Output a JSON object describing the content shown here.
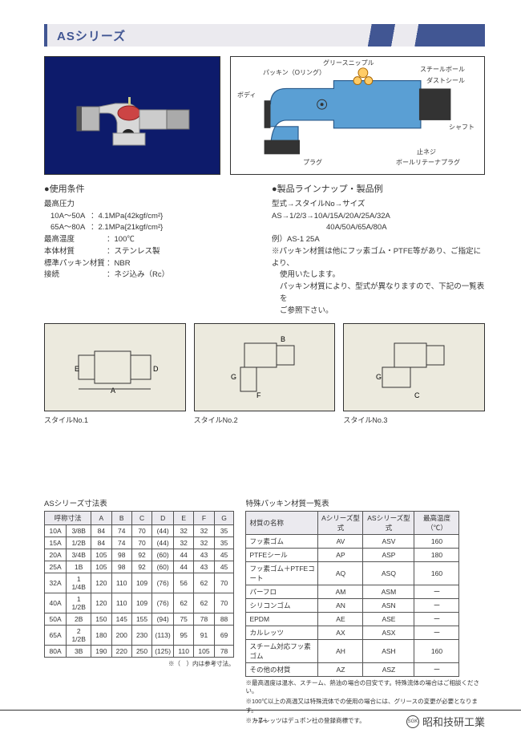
{
  "title": "ASシリーズ",
  "diagram_labels": {
    "body": "ボディ",
    "packing": "パッキン（Oリング）",
    "grease": "グリースニップル",
    "steel_ball": "スチールボール",
    "dust_seal": "ダストシール",
    "shaft": "シャフト",
    "set_screw": "止ネジ",
    "retainer": "ボールリテーナプラグ",
    "plug": "プラグ"
  },
  "usage": {
    "heading": "●使用条件",
    "max_pressure_label": "最高圧力",
    "p1_range": "10A～50A",
    "p1_val": "：4.1MPa{42kgf/cm²}",
    "p2_range": "65A～80A",
    "p2_val": "：2.1MPa{21kgf/cm²}",
    "max_temp_label": "最高温度",
    "max_temp_val": "：100℃",
    "body_mat_label": "本体材質",
    "body_mat_val": "：ステンレス製",
    "packing_label": "標準パッキン材質",
    "packing_val": "：NBR",
    "conn_label": "接続",
    "conn_val": "：ネジ込み（Rc）"
  },
  "lineup": {
    "heading": "●製品ラインナップ・製品例",
    "l1": "型式→スタイルNo→サイズ",
    "l2": "AS→1/2/3→10A/15A/20A/25A/32A",
    "l3": "40A/50A/65A/80A",
    "l4": "例）AS-1 25A",
    "l5": "※パッキン材質は他にフッ素ゴム・PTFE等があり、ご指定により、",
    "l6": "使用いたします。",
    "l7": "パッキン材質により、型式が異なりますので、下記の一覧表を",
    "l8": "ご参照下さい。"
  },
  "styles": {
    "s1": "スタイルNo.1",
    "s2": "スタイルNo.2",
    "s3": "スタイルNo.3"
  },
  "dim_table": {
    "title": "ASシリーズ寸法表",
    "head1": "呼称寸法",
    "cols": [
      "A",
      "B",
      "C",
      "D",
      "E",
      "F",
      "G"
    ],
    "rows": [
      [
        "10A",
        "3/8B",
        "84",
        "74",
        "70",
        "(44)",
        "32",
        "32",
        "35"
      ],
      [
        "15A",
        "1/2B",
        "84",
        "74",
        "70",
        "(44)",
        "32",
        "32",
        "35"
      ],
      [
        "20A",
        "3/4B",
        "105",
        "98",
        "92",
        "(60)",
        "44",
        "43",
        "45"
      ],
      [
        "25A",
        "1B",
        "105",
        "98",
        "92",
        "(60)",
        "44",
        "43",
        "45"
      ],
      [
        "32A",
        "1 1/4B",
        "120",
        "110",
        "109",
        "(76)",
        "56",
        "62",
        "70"
      ],
      [
        "40A",
        "1 1/2B",
        "120",
        "110",
        "109",
        "(76)",
        "62",
        "62",
        "70"
      ],
      [
        "50A",
        "2B",
        "150",
        "145",
        "155",
        "(94)",
        "75",
        "78",
        "88"
      ],
      [
        "65A",
        "2 1/2B",
        "180",
        "200",
        "230",
        "(113)",
        "95",
        "91",
        "69"
      ],
      [
        "80A",
        "3B",
        "190",
        "220",
        "250",
        "(125)",
        "110",
        "105",
        "78"
      ]
    ],
    "note": "※（　）内は参考寸法。"
  },
  "mat_table": {
    "title": "特殊パッキン材質一覧表",
    "cols": [
      "材質の名称",
      "Aシリーズ型式",
      "ASシリーズ型式",
      "最高温度（℃）"
    ],
    "rows": [
      [
        "フッ素ゴム",
        "AV",
        "ASV",
        "160"
      ],
      [
        "PTFEシール",
        "AP",
        "ASP",
        "180"
      ],
      [
        "フッ素ゴム＋PTFEコート",
        "AQ",
        "ASQ",
        "160"
      ],
      [
        "パーフロ",
        "AM",
        "ASM",
        "ー"
      ],
      [
        "シリコンゴム",
        "AN",
        "ASN",
        "ー"
      ],
      [
        "EPDM",
        "AE",
        "ASE",
        "ー"
      ],
      [
        "カルレッツ",
        "AX",
        "ASX",
        "ー"
      ],
      [
        "スチーム対応フッ素ゴム",
        "AH",
        "ASH",
        "160"
      ],
      [
        "その他の材質",
        "AZ",
        "ASZ",
        "ー"
      ]
    ],
    "note1": "※最高温度は温水、スチーム、熱油の場合の目安です。特殊流体の場合はご相談ください。",
    "note2": "※100℃以上の高温又は特殊流体での使用の場合には、グリースの変更が必要となります。",
    "note3": "※カルレッツはデュポン社の登録商標です。"
  },
  "footer": {
    "page": "−7−",
    "company": "昭和技研工業",
    "logo": "SGK"
  }
}
